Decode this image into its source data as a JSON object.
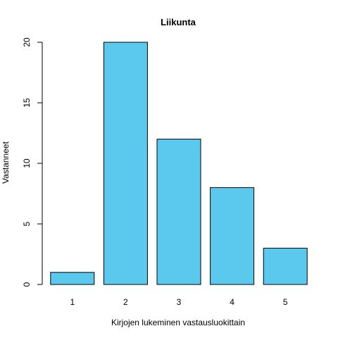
{
  "chart_data": {
    "type": "bar",
    "title": "Liikunta",
    "xlabel": "Kirjojen lukeminen vastausluokittain",
    "ylabel": "Vastanneet",
    "categories": [
      "1",
      "2",
      "3",
      "4",
      "5"
    ],
    "values": [
      1,
      20,
      12,
      8,
      3
    ],
    "ylim": [
      0,
      20
    ],
    "yticks": [
      0,
      5,
      10,
      15,
      20
    ],
    "bar_color": "#5bc8ee",
    "grid": false,
    "legend": "none"
  }
}
